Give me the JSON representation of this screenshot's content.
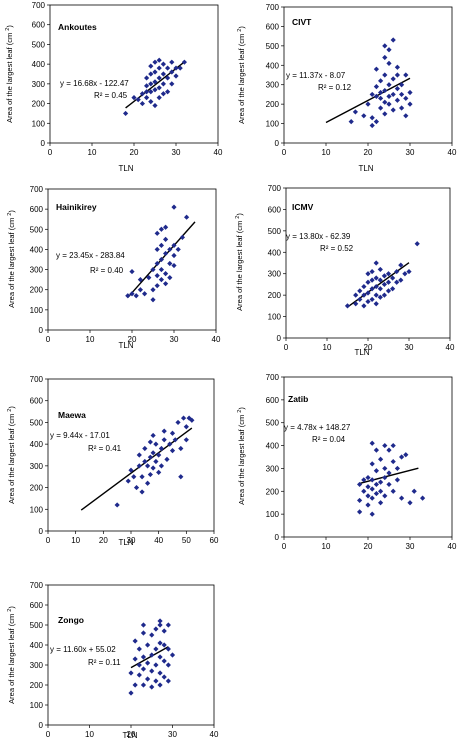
{
  "colors": {
    "marker": "#1f2a8c",
    "line": "#000000",
    "axis": "#000000",
    "frame": "#000000"
  },
  "chart_data": [
    {
      "type": "scatter",
      "title": "Ankoutes",
      "xlabel": "TLN",
      "ylabel": "Area of the largest leaf (cm 2)",
      "xlim": [
        0,
        40
      ],
      "ylim": [
        0,
        700
      ],
      "xticks": [
        0,
        10,
        20,
        30,
        40
      ],
      "yticks": [
        0,
        100,
        200,
        300,
        400,
        500,
        600,
        700
      ],
      "equation": "y = 16.68x - 122.47",
      "r2": "R² = 0.45",
      "grid": false,
      "trendline": {
        "slope": 16.68,
        "intercept": -122.47,
        "x_start": 18,
        "x_end": 32
      },
      "points": [
        [
          18,
          150
        ],
        [
          20,
          230
        ],
        [
          21,
          220
        ],
        [
          22,
          250
        ],
        [
          22,
          200
        ],
        [
          23,
          260
        ],
        [
          23,
          290
        ],
        [
          23,
          330
        ],
        [
          23,
          230
        ],
        [
          24,
          210
        ],
        [
          24,
          260
        ],
        [
          24,
          300
        ],
        [
          24,
          350
        ],
        [
          24,
          390
        ],
        [
          25,
          190
        ],
        [
          25,
          270
        ],
        [
          25,
          310
        ],
        [
          25,
          360
        ],
        [
          25,
          410
        ],
        [
          26,
          230
        ],
        [
          26,
          280
        ],
        [
          26,
          330
        ],
        [
          26,
          380
        ],
        [
          26,
          420
        ],
        [
          27,
          250
        ],
        [
          27,
          300
        ],
        [
          27,
          350
        ],
        [
          27,
          400
        ],
        [
          28,
          260
        ],
        [
          28,
          330
        ],
        [
          28,
          380
        ],
        [
          29,
          300
        ],
        [
          29,
          360
        ],
        [
          29,
          410
        ],
        [
          30,
          340
        ],
        [
          30,
          380
        ],
        [
          31,
          380
        ],
        [
          32,
          410
        ]
      ]
    },
    {
      "type": "scatter",
      "title": "CIVT",
      "xlabel": "TLN",
      "ylabel": "Area of the largest leaf (cm 2)",
      "xlim": [
        0,
        40
      ],
      "ylim": [
        0,
        700
      ],
      "xticks": [
        0,
        10,
        20,
        30,
        40
      ],
      "yticks": [
        0,
        100,
        200,
        300,
        400,
        500,
        600,
        700
      ],
      "equation": "y = 11.37x - 8.07",
      "r2": "R² = 0.12",
      "grid": false,
      "trendline": {
        "slope": 11.37,
        "intercept": -8.07,
        "x_start": 10,
        "x_end": 30
      },
      "points": [
        [
          16,
          110
        ],
        [
          17,
          160
        ],
        [
          19,
          140
        ],
        [
          20,
          200
        ],
        [
          21,
          90
        ],
        [
          21,
          130
        ],
        [
          21,
          250
        ],
        [
          22,
          110
        ],
        [
          22,
          240
        ],
        [
          22,
          290
        ],
        [
          22,
          380
        ],
        [
          23,
          180
        ],
        [
          23,
          230
        ],
        [
          23,
          260
        ],
        [
          23,
          320
        ],
        [
          24,
          150
        ],
        [
          24,
          210
        ],
        [
          24,
          270
        ],
        [
          24,
          350
        ],
        [
          24,
          440
        ],
        [
          24,
          500
        ],
        [
          25,
          200
        ],
        [
          25,
          240
        ],
        [
          25,
          300
        ],
        [
          25,
          410
        ],
        [
          25,
          480
        ],
        [
          26,
          170
        ],
        [
          26,
          250
        ],
        [
          26,
          330
        ],
        [
          26,
          530
        ],
        [
          27,
          220
        ],
        [
          27,
          280
        ],
        [
          27,
          350
        ],
        [
          27,
          390
        ],
        [
          28,
          180
        ],
        [
          28,
          250
        ],
        [
          28,
          300
        ],
        [
          29,
          140
        ],
        [
          29,
          230
        ],
        [
          29,
          350
        ],
        [
          30,
          200
        ],
        [
          30,
          260
        ]
      ]
    },
    {
      "type": "scatter",
      "title": "Hainikirey",
      "xlabel": "TLN",
      "ylabel": "Area of the largest leaf (cm 2)",
      "xlim": [
        0,
        40
      ],
      "ylim": [
        0,
        700
      ],
      "xticks": [
        0,
        10,
        20,
        30,
        40
      ],
      "yticks": [
        0,
        100,
        200,
        300,
        400,
        500,
        600,
        700
      ],
      "equation": "y = 23.45x - 283.84",
      "r2": "R² = 0.40",
      "grid": false,
      "trendline": {
        "slope": 23.45,
        "intercept": -283.84,
        "x_start": 19,
        "x_end": 35
      },
      "points": [
        [
          19,
          170
        ],
        [
          20,
          180
        ],
        [
          20,
          290
        ],
        [
          21,
          170
        ],
        [
          22,
          200
        ],
        [
          22,
          250
        ],
        [
          23,
          180
        ],
        [
          24,
          260
        ],
        [
          25,
          150
        ],
        [
          25,
          200
        ],
        [
          25,
          300
        ],
        [
          26,
          220
        ],
        [
          26,
          270
        ],
        [
          26,
          330
        ],
        [
          26,
          400
        ],
        [
          26,
          480
        ],
        [
          27,
          250
        ],
        [
          27,
          300
        ],
        [
          27,
          350
        ],
        [
          27,
          420
        ],
        [
          27,
          500
        ],
        [
          28,
          230
        ],
        [
          28,
          280
        ],
        [
          28,
          380
        ],
        [
          28,
          450
        ],
        [
          28,
          510
        ],
        [
          29,
          260
        ],
        [
          29,
          330
        ],
        [
          29,
          400
        ],
        [
          30,
          320
        ],
        [
          30,
          370
        ],
        [
          30,
          420
        ],
        [
          30,
          610
        ],
        [
          31,
          400
        ],
        [
          32,
          460
        ],
        [
          33,
          560
        ]
      ]
    },
    {
      "type": "scatter",
      "title": "ICMV",
      "xlabel": "TLN",
      "ylabel": "Area of the largest leaf (cm 2)",
      "xlim": [
        0,
        40
      ],
      "ylim": [
        0,
        700
      ],
      "xticks": [
        0,
        10,
        20,
        30,
        40
      ],
      "yticks": [
        0,
        100,
        200,
        300,
        400,
        500,
        600,
        700
      ],
      "equation": "y = 13.80x - 62.39",
      "r2": "R² = 0.52",
      "grid": false,
      "trendline": {
        "slope": 13.8,
        "intercept": -62.39,
        "x_start": 15,
        "x_end": 30
      },
      "points": [
        [
          15,
          150
        ],
        [
          17,
          160
        ],
        [
          17,
          200
        ],
        [
          18,
          180
        ],
        [
          18,
          220
        ],
        [
          19,
          150
        ],
        [
          19,
          200
        ],
        [
          19,
          240
        ],
        [
          20,
          170
        ],
        [
          20,
          210
        ],
        [
          20,
          260
        ],
        [
          20,
          300
        ],
        [
          21,
          180
        ],
        [
          21,
          230
        ],
        [
          21,
          270
        ],
        [
          21,
          310
        ],
        [
          22,
          160
        ],
        [
          22,
          200
        ],
        [
          22,
          240
        ],
        [
          22,
          280
        ],
        [
          22,
          350
        ],
        [
          23,
          190
        ],
        [
          23,
          230
        ],
        [
          23,
          270
        ],
        [
          23,
          320
        ],
        [
          24,
          200
        ],
        [
          24,
          250
        ],
        [
          24,
          290
        ],
        [
          25,
          220
        ],
        [
          25,
          260
        ],
        [
          25,
          300
        ],
        [
          26,
          230
        ],
        [
          26,
          280
        ],
        [
          27,
          260
        ],
        [
          27,
          310
        ],
        [
          28,
          270
        ],
        [
          28,
          340
        ],
        [
          29,
          300
        ],
        [
          30,
          310
        ],
        [
          32,
          440
        ]
      ]
    },
    {
      "type": "scatter",
      "title": "Maewa",
      "xlabel": "TLN",
      "ylabel": "Area of the largest leaf (cm 2)",
      "xlim": [
        0,
        60
      ],
      "ylim": [
        0,
        700
      ],
      "xticks": [
        0,
        10,
        20,
        30,
        40,
        50,
        60
      ],
      "yticks": [
        0,
        100,
        200,
        300,
        400,
        500,
        600,
        700
      ],
      "equation": "y = 9.44x - 17.01",
      "r2": "R² = 0.41",
      "grid": false,
      "trendline": {
        "slope": 9.44,
        "intercept": -17.01,
        "x_start": 12,
        "x_end": 52
      },
      "points": [
        [
          25,
          120
        ],
        [
          29,
          230
        ],
        [
          30,
          280
        ],
        [
          31,
          250
        ],
        [
          32,
          200
        ],
        [
          33,
          300
        ],
        [
          33,
          350
        ],
        [
          34,
          180
        ],
        [
          34,
          250
        ],
        [
          35,
          320
        ],
        [
          35,
          380
        ],
        [
          36,
          220
        ],
        [
          36,
          300
        ],
        [
          37,
          260
        ],
        [
          37,
          340
        ],
        [
          37,
          410
        ],
        [
          38,
          290
        ],
        [
          38,
          360
        ],
        [
          38,
          440
        ],
        [
          39,
          320
        ],
        [
          39,
          400
        ],
        [
          40,
          270
        ],
        [
          40,
          350
        ],
        [
          41,
          300
        ],
        [
          41,
          380
        ],
        [
          42,
          420
        ],
        [
          42,
          460
        ],
        [
          43,
          330
        ],
        [
          44,
          400
        ],
        [
          45,
          370
        ],
        [
          45,
          450
        ],
        [
          46,
          420
        ],
        [
          47,
          500
        ],
        [
          48,
          250
        ],
        [
          48,
          380
        ],
        [
          49,
          520
        ],
        [
          50,
          420
        ],
        [
          50,
          480
        ],
        [
          51,
          520
        ],
        [
          52,
          510
        ]
      ]
    },
    {
      "type": "scatter",
      "title": "Zatib",
      "xlabel": "",
      "ylabel": "Area of the largest leaf (cm 2)",
      "xlim": [
        0,
        40
      ],
      "ylim": [
        0,
        700
      ],
      "xticks": [
        0,
        10,
        20,
        30,
        40
      ],
      "yticks": [
        0,
        100,
        200,
        300,
        400,
        500,
        600,
        700
      ],
      "equation": "y = 4.78x + 148.27",
      "r2": "R² = 0.04",
      "grid": false,
      "trendline": {
        "slope": 4.78,
        "intercept": 148.27,
        "x_start": 18,
        "x_end": 32
      },
      "points": [
        [
          18,
          110
        ],
        [
          18,
          160
        ],
        [
          18,
          230
        ],
        [
          19,
          200
        ],
        [
          19,
          250
        ],
        [
          20,
          140
        ],
        [
          20,
          180
        ],
        [
          20,
          220
        ],
        [
          20,
          260
        ],
        [
          21,
          100
        ],
        [
          21,
          170
        ],
        [
          21,
          210
        ],
        [
          21,
          250
        ],
        [
          21,
          320
        ],
        [
          21,
          410
        ],
        [
          22,
          190
        ],
        [
          22,
          230
        ],
        [
          22,
          290
        ],
        [
          22,
          380
        ],
        [
          23,
          150
        ],
        [
          23,
          200
        ],
        [
          23,
          240
        ],
        [
          23,
          340
        ],
        [
          24,
          180
        ],
        [
          24,
          260
        ],
        [
          24,
          300
        ],
        [
          24,
          400
        ],
        [
          25,
          230
        ],
        [
          25,
          280
        ],
        [
          25,
          380
        ],
        [
          26,
          200
        ],
        [
          26,
          330
        ],
        [
          26,
          400
        ],
        [
          27,
          250
        ],
        [
          27,
          300
        ],
        [
          28,
          170
        ],
        [
          28,
          350
        ],
        [
          29,
          360
        ],
        [
          30,
          150
        ],
        [
          31,
          200
        ],
        [
          33,
          170
        ]
      ]
    },
    {
      "type": "scatter",
      "title": "Zongo",
      "xlabel": "TLN",
      "ylabel": "Area of the largest leaf (cm 2)",
      "xlim": [
        0,
        40
      ],
      "ylim": [
        0,
        700
      ],
      "xticks": [
        0,
        10,
        20,
        30,
        40
      ],
      "yticks": [
        0,
        100,
        200,
        300,
        400,
        500,
        600,
        700
      ],
      "equation": "y = 11.60x + 55.02",
      "r2": "R² = 0.11",
      "grid": false,
      "trendline": {
        "slope": 11.6,
        "intercept": 55.02,
        "x_start": 20,
        "x_end": 29
      },
      "points": [
        [
          20,
          160
        ],
        [
          20,
          260
        ],
        [
          21,
          200
        ],
        [
          21,
          330
        ],
        [
          21,
          420
        ],
        [
          22,
          250
        ],
        [
          22,
          300
        ],
        [
          22,
          380
        ],
        [
          23,
          200
        ],
        [
          23,
          280
        ],
        [
          23,
          340
        ],
        [
          23,
          460
        ],
        [
          23,
          500
        ],
        [
          24,
          230
        ],
        [
          24,
          310
        ],
        [
          24,
          400
        ],
        [
          25,
          190
        ],
        [
          25,
          270
        ],
        [
          25,
          350
        ],
        [
          25,
          450
        ],
        [
          26,
          220
        ],
        [
          26,
          300
        ],
        [
          26,
          380
        ],
        [
          26,
          480
        ],
        [
          27,
          200
        ],
        [
          27,
          260
        ],
        [
          27,
          340
        ],
        [
          27,
          410
        ],
        [
          27,
          500
        ],
        [
          27,
          520
        ],
        [
          28,
          240
        ],
        [
          28,
          320
        ],
        [
          28,
          400
        ],
        [
          28,
          470
        ],
        [
          29,
          220
        ],
        [
          29,
          300
        ],
        [
          29,
          380
        ],
        [
          29,
          500
        ],
        [
          30,
          350
        ]
      ]
    }
  ]
}
